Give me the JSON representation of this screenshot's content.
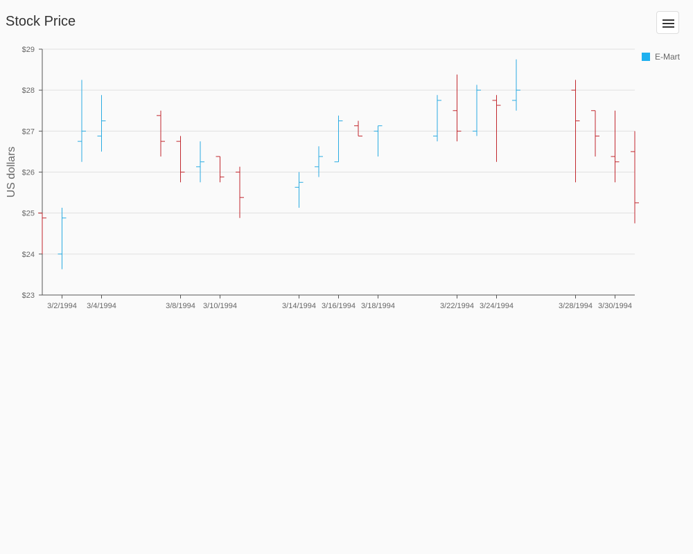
{
  "header": {
    "title": "Stock Price",
    "menu_icon": "hamburger-menu-icon"
  },
  "legend": {
    "label": "E-Mart"
  },
  "colors": {
    "up": "#29abe2",
    "down": "#c1272d",
    "legend": "#1eb0ef",
    "grid": "#e0e0e0",
    "axis": "#555555"
  },
  "chart_data": {
    "type": "ohlc",
    "title": "Stock Price",
    "ylabel": "US dollars",
    "xlabel": "",
    "series": [
      {
        "name": "E-Mart"
      }
    ],
    "ylim": [
      23,
      29
    ],
    "yticks": [
      23,
      24,
      25,
      26,
      27,
      28,
      29
    ],
    "ytick_labels": [
      "$23",
      "$24",
      "$25",
      "$26",
      "$27",
      "$28",
      "$29"
    ],
    "xlim": [
      "2/29/1994",
      "3/31/1994"
    ],
    "xticks": [
      "3/2/1994",
      "3/4/1994",
      "3/8/1994",
      "3/10/1994",
      "3/14/1994",
      "3/16/1994",
      "3/18/1994",
      "3/22/1994",
      "3/24/1994",
      "3/28/1994",
      "3/30/1994"
    ],
    "grid": true,
    "legend_position": "top-right",
    "points": [
      {
        "date": "3/1/1994",
        "open": 25.0,
        "high": 25.0,
        "low": 24.0,
        "close": 24.88
      },
      {
        "date": "3/2/1994",
        "open": 24.0,
        "high": 25.13,
        "low": 23.63,
        "close": 24.88
      },
      {
        "date": "3/3/1994",
        "open": 26.75,
        "high": 28.25,
        "low": 26.25,
        "close": 27.0
      },
      {
        "date": "3/4/1994",
        "open": 26.88,
        "high": 27.88,
        "low": 26.5,
        "close": 27.25
      },
      {
        "date": "3/7/1994",
        "open": 27.38,
        "high": 27.5,
        "low": 26.38,
        "close": 26.75
      },
      {
        "date": "3/8/1994",
        "open": 26.75,
        "high": 26.88,
        "low": 25.75,
        "close": 26.0
      },
      {
        "date": "3/9/1994",
        "open": 26.13,
        "high": 26.75,
        "low": 25.75,
        "close": 26.25
      },
      {
        "date": "3/10/1994",
        "open": 26.38,
        "high": 26.38,
        "low": 25.75,
        "close": 25.88
      },
      {
        "date": "3/11/1994",
        "open": 26.0,
        "high": 26.13,
        "low": 24.88,
        "close": 25.38
      },
      {
        "date": "3/14/1994",
        "open": 25.63,
        "high": 26.0,
        "low": 25.13,
        "close": 25.75
      },
      {
        "date": "3/15/1994",
        "open": 26.13,
        "high": 26.63,
        "low": 25.88,
        "close": 26.38
      },
      {
        "date": "3/16/1994",
        "open": 26.25,
        "high": 27.38,
        "low": 26.25,
        "close": 27.25
      },
      {
        "date": "3/17/1994",
        "open": 27.13,
        "high": 27.25,
        "low": 26.88,
        "close": 26.88
      },
      {
        "date": "3/18/1994",
        "open": 27.0,
        "high": 27.13,
        "low": 26.38,
        "close": 27.13
      },
      {
        "date": "3/21/1994",
        "open": 26.88,
        "high": 27.88,
        "low": 26.75,
        "close": 27.75
      },
      {
        "date": "3/22/1994",
        "open": 27.5,
        "high": 28.38,
        "low": 26.75,
        "close": 27.0
      },
      {
        "date": "3/23/1994",
        "open": 27.0,
        "high": 28.13,
        "low": 26.88,
        "close": 28.0
      },
      {
        "date": "3/24/1994",
        "open": 27.75,
        "high": 27.88,
        "low": 26.25,
        "close": 27.63
      },
      {
        "date": "3/25/1994",
        "open": 27.75,
        "high": 28.75,
        "low": 27.5,
        "close": 28.0
      },
      {
        "date": "3/28/1994",
        "open": 28.0,
        "high": 28.25,
        "low": 25.75,
        "close": 27.25
      },
      {
        "date": "3/29/1994",
        "open": 27.5,
        "high": 27.5,
        "low": 26.38,
        "close": 26.88
      },
      {
        "date": "3/30/1994",
        "open": 26.38,
        "high": 27.5,
        "low": 25.75,
        "close": 26.25
      },
      {
        "date": "3/31/1994",
        "open": 26.5,
        "high": 27.0,
        "low": 24.75,
        "close": 25.25
      }
    ]
  }
}
